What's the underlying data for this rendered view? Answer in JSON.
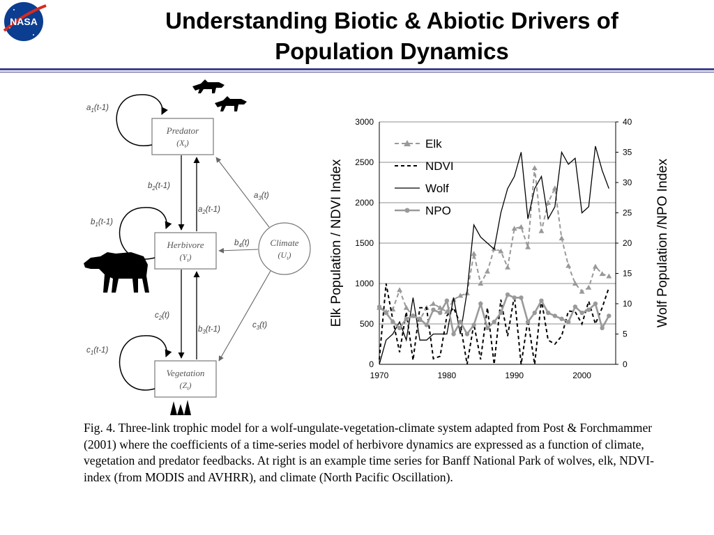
{
  "header": {
    "logo_text": "NASA",
    "title_lines": [
      "Understanding Biotic & Abiotic Drivers of",
      "Population Dynamics"
    ]
  },
  "diagram": {
    "nodes": {
      "predator": {
        "label": "Predator",
        "symbol": "(X",
        "sub": "t",
        "close": ")"
      },
      "herbivore": {
        "label": "Herbivore",
        "symbol": "(Y",
        "sub": "t",
        "close": ")"
      },
      "vegetation": {
        "label": "Vegetation",
        "symbol": "(Z",
        "sub": "t",
        "close": ")"
      },
      "climate": {
        "label": "Climate",
        "symbol": "(U",
        "sub": "t",
        "close": ")"
      }
    },
    "coefficients": {
      "a1": {
        "base": "a",
        "sub": "1",
        "arg": "(t-1)"
      },
      "b2": {
        "base": "b",
        "sub": "2",
        "arg": "(t-1)"
      },
      "a2": {
        "base": "a",
        "sub": "2",
        "arg": "(t-1)"
      },
      "b1": {
        "base": "b",
        "sub": "1",
        "arg": "(t-1)"
      },
      "a3": {
        "base": "a",
        "sub": "3",
        "arg": "(t)"
      },
      "b4": {
        "base": "b",
        "sub": "4",
        "arg": "(t)"
      },
      "c2": {
        "base": "c",
        "sub": "2",
        "arg": "(t)"
      },
      "b3": {
        "base": "b",
        "sub": "3",
        "arg": "(t-1)"
      },
      "c3": {
        "base": "c",
        "sub": "3",
        "arg": "(t)"
      },
      "c1": {
        "base": "c",
        "sub": "1",
        "arg": "(t-1)"
      }
    }
  },
  "chart_data": {
    "type": "line",
    "xlim": [
      1970,
      2005
    ],
    "ylim_left": [
      0,
      3000
    ],
    "ylim_right": [
      0,
      40
    ],
    "xticks": [
      1970,
      1980,
      1990,
      2000
    ],
    "yticks_left": [
      0,
      500,
      1000,
      1500,
      2000,
      2500,
      3000
    ],
    "yticks_right": [
      0,
      5,
      10,
      15,
      20,
      25,
      30,
      35,
      40
    ],
    "ylabel_left": "Elk Population / NDVI Index",
    "ylabel_right": "Wolf Population /NPO Index",
    "grid": "horizontal",
    "legend_position": "top-left",
    "series": [
      {
        "name": "Elk",
        "axis": "left",
        "style": "dashed-triangle",
        "color": "#999999",
        "x": [
          1970,
          1971,
          1972,
          1973,
          1974,
          1975,
          1976,
          1977,
          1978,
          1979,
          1980,
          1981,
          1982,
          1983,
          1984,
          1985,
          1986,
          1987,
          1988,
          1989,
          1990,
          1991,
          1992,
          1993,
          1994,
          1995,
          1996,
          1997,
          1998,
          1999,
          2000,
          2001,
          2002,
          2003,
          2004
        ],
        "values": [
          700,
          650,
          680,
          920,
          700,
          600,
          550,
          700,
          750,
          700,
          650,
          800,
          850,
          880,
          1370,
          1000,
          1150,
          1430,
          1400,
          1200,
          1680,
          1700,
          1450,
          2430,
          1650,
          2000,
          2180,
          1560,
          1220,
          1000,
          900,
          950,
          1210,
          1120,
          1090
        ]
      },
      {
        "name": "NDVI",
        "axis": "left",
        "style": "dashed",
        "color": "#000000",
        "x": [
          1970,
          1971,
          1972,
          1973,
          1974,
          1975,
          1976,
          1977,
          1978,
          1979,
          1980,
          1981,
          1982,
          1983,
          1984,
          1985,
          1986,
          1987,
          1988,
          1989,
          1990,
          1991,
          1992,
          1993,
          1994,
          1995,
          1996,
          1997,
          1998,
          1999,
          2000,
          2001,
          2002,
          2003,
          2004
        ],
        "values": [
          60,
          1000,
          550,
          150,
          650,
          50,
          700,
          700,
          70,
          100,
          600,
          700,
          500,
          0,
          500,
          60,
          700,
          0,
          800,
          350,
          850,
          0,
          550,
          0,
          800,
          300,
          250,
          350,
          660,
          650,
          500,
          780,
          500,
          700,
          950
        ]
      },
      {
        "name": "Wolf",
        "axis": "right",
        "style": "solid",
        "color": "#000000",
        "x": [
          1970,
          1971,
          1972,
          1973,
          1974,
          1975,
          1976,
          1977,
          1978,
          1979,
          1980,
          1981,
          1982,
          1983,
          1984,
          1985,
          1986,
          1987,
          1988,
          1989,
          1990,
          1991,
          1992,
          1993,
          1994,
          1995,
          1996,
          1997,
          1998,
          1999,
          2000,
          2001,
          2002,
          2003,
          2004
        ],
        "values": [
          0,
          4,
          5,
          7,
          4,
          11,
          4,
          4,
          5,
          5,
          5,
          11,
          5,
          12,
          23,
          21,
          20,
          19,
          25,
          29,
          31,
          35,
          24,
          29,
          31,
          24,
          26,
          35,
          33,
          34,
          25,
          26,
          36,
          32,
          29
        ]
      },
      {
        "name": "NPO",
        "axis": "right",
        "style": "solid-circle",
        "color": "#999999",
        "x": [
          1970,
          1971,
          1972,
          1973,
          1974,
          1975,
          1976,
          1977,
          1978,
          1979,
          1980,
          1981,
          1982,
          1983,
          1984,
          1985,
          1986,
          1987,
          1988,
          1989,
          1990,
          1991,
          1992,
          1993,
          1994,
          1995,
          1996,
          1997,
          1998,
          1999,
          2000,
          2001,
          2002,
          2003,
          2004
        ],
        "values": [
          9.5,
          8.5,
          7,
          6,
          7.5,
          8,
          7.5,
          6.5,
          9,
          8.5,
          10.5,
          5,
          7,
          5,
          6.5,
          10,
          6,
          7,
          8.5,
          11.5,
          11,
          11,
          7,
          8.5,
          10.5,
          8.5,
          8,
          7.5,
          7,
          9.5,
          8.5,
          9,
          10,
          6,
          8
        ]
      }
    ]
  },
  "caption": {
    "text": "Fig. 4. Three-link trophic model for a wolf-ungulate-vegetation-climate system adapted from Post & Forchmammer (2001) where the coefficients of a time-series model of herbivore dynamics are expressed as a function of climate, vegetation and predator feedbacks. At right is an example time series for Banff National Park of wolves, elk, NDVI-index (from MODIS and AVHRR), and climate (North Pacific Oscillation)."
  }
}
